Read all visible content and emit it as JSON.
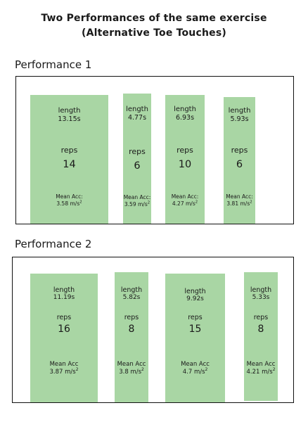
{
  "title_line1": "Two Performances of the same exercise",
  "title_line2": "(Alternative Toe Touches)",
  "labels": {
    "length": "length",
    "reps": "reps",
    "mean_acc_p1": "Mean Acc:",
    "mean_acc_p2": "Mean Acc",
    "acc_unit_base": "m/s",
    "acc_unit_exp": "2"
  },
  "performances": [
    {
      "name": "Performance 1",
      "segments": [
        {
          "length": "13.15s",
          "reps": "14",
          "mean_acc": "3.58"
        },
        {
          "length": "4.77s",
          "reps": "6",
          "mean_acc": "3.59"
        },
        {
          "length": "6.93s",
          "reps": "10",
          "mean_acc": "4.27"
        },
        {
          "length": "5.93s",
          "reps": "6",
          "mean_acc": "3.81"
        }
      ]
    },
    {
      "name": "Performance 2",
      "segments": [
        {
          "length": "11.19s",
          "reps": "16",
          "mean_acc": "3.87"
        },
        {
          "length": "5.82s",
          "reps": "8",
          "mean_acc": "3.8"
        },
        {
          "length": "9.92s",
          "reps": "15",
          "mean_acc": "4.7"
        },
        {
          "length": "5.33s",
          "reps": "8",
          "mean_acc": "4.21"
        }
      ]
    }
  ],
  "colors": {
    "bar_fill": "#a9d6a4",
    "frame_border": "#111111"
  }
}
